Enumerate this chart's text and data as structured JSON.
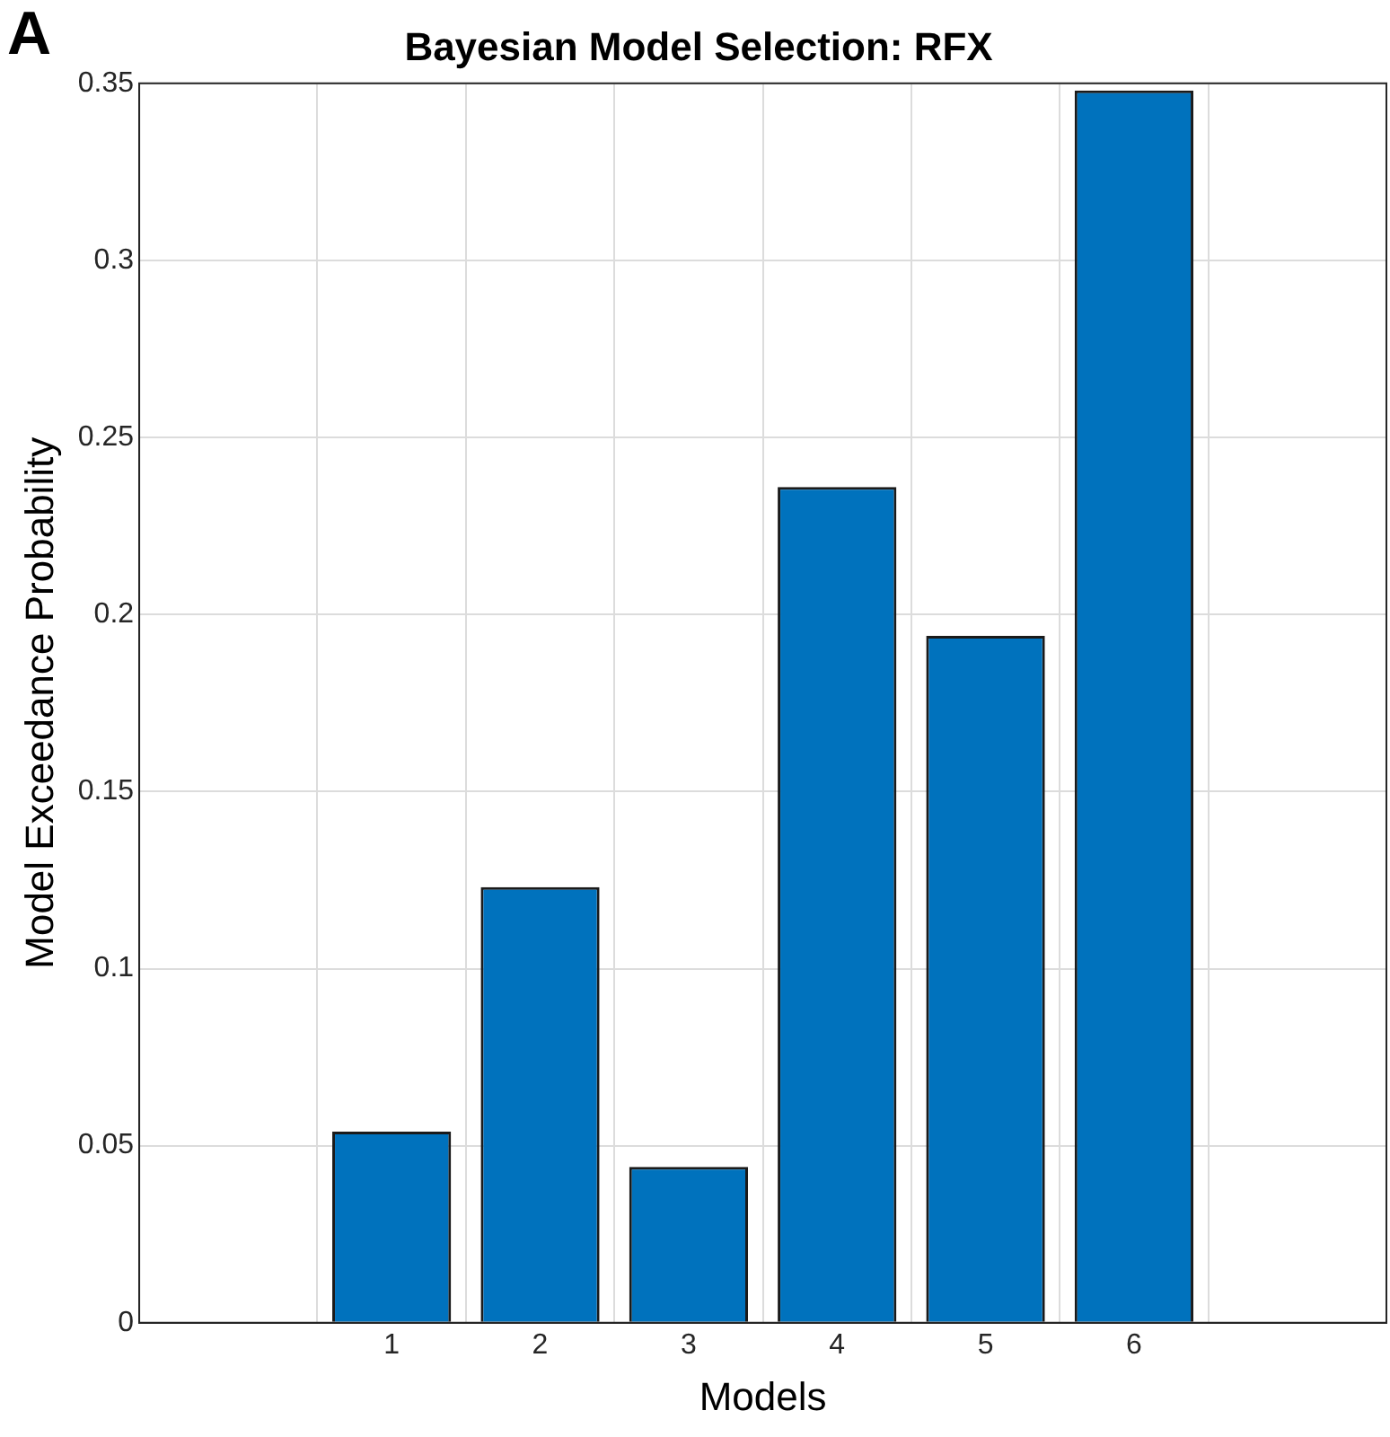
{
  "chart_data": {
    "type": "bar",
    "title": "Bayesian Model Selection: RFX",
    "xlabel": "Models",
    "ylabel": "Model Exceedance Probability",
    "categories": [
      "1",
      "2",
      "3",
      "4",
      "5",
      "6"
    ],
    "values": [
      0.054,
      0.123,
      0.044,
      0.236,
      0.194,
      0.348
    ],
    "color": "#0072bd",
    "ylim": [
      0,
      0.35
    ],
    "yticks": [
      0,
      0.05,
      0.1,
      0.15,
      0.2,
      0.25,
      0.3,
      0.35
    ],
    "grid": true,
    "legend": false,
    "annotations": [
      "A"
    ]
  }
}
